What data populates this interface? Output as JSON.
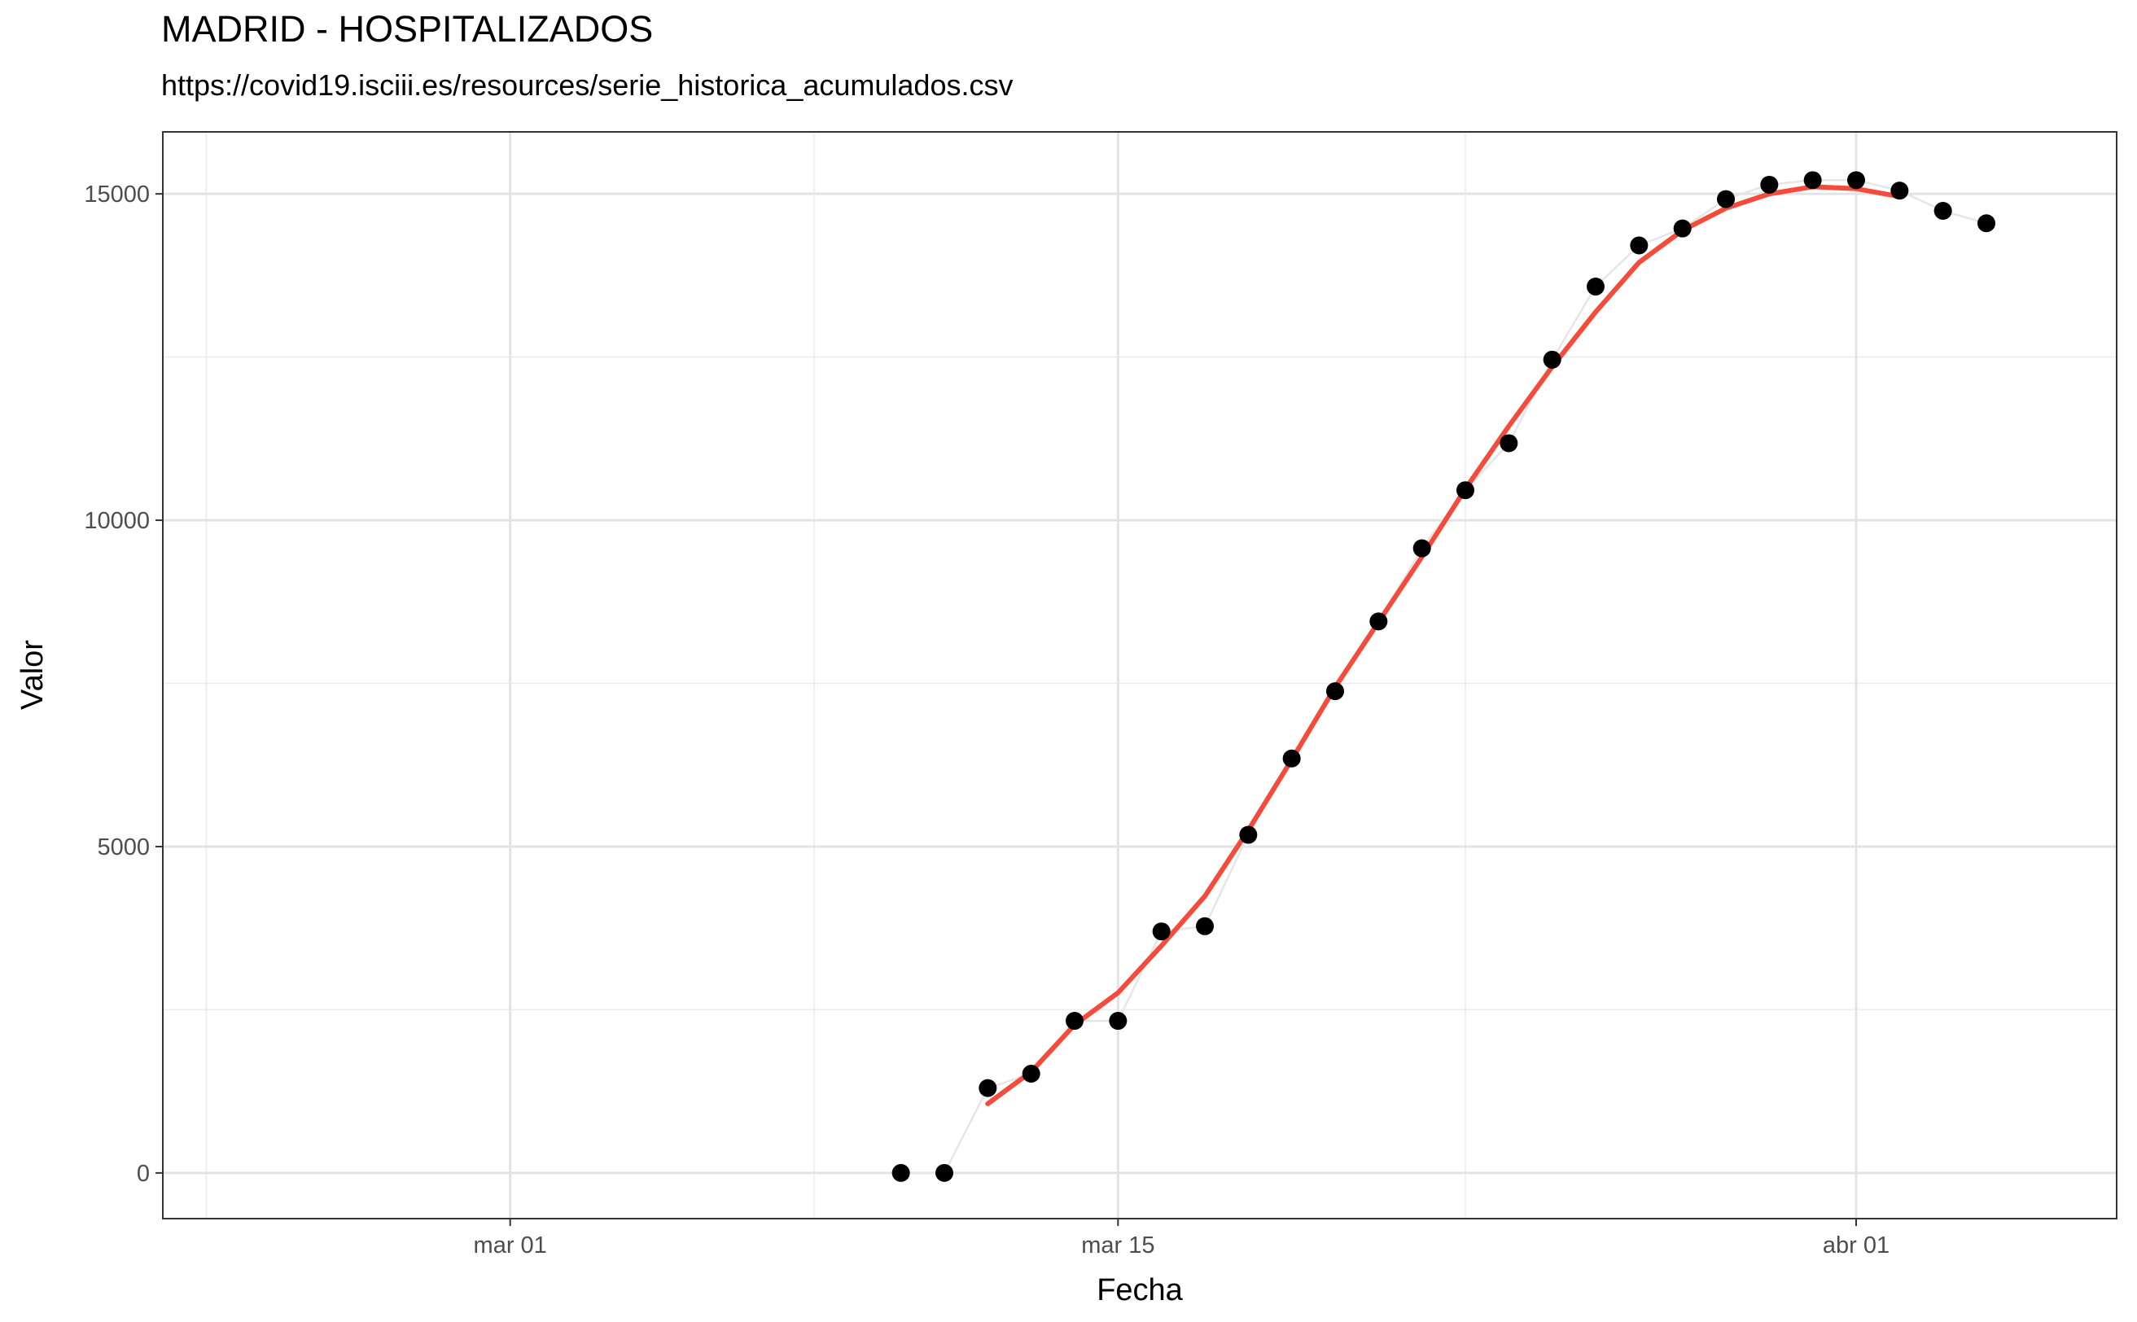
{
  "chart_data": {
    "type": "line",
    "title": "MADRID - HOSPITALIZADOS",
    "subtitle": "https://covid19.isciii.es/resources/serie_historica_acumulados.csv",
    "xlabel": "Fecha",
    "ylabel": "Valor",
    "x_is_date": true,
    "xlim": [
      "2020-02-22",
      "2020-04-07"
    ],
    "ylim": [
      -700,
      15950
    ],
    "x_ticks": [
      {
        "date": "2020-03-01",
        "label": "mar 01"
      },
      {
        "date": "2020-03-15",
        "label": "mar 15"
      },
      {
        "date": "2020-04-01",
        "label": "abr 01"
      }
    ],
    "x_minor_ticks": [
      "2020-02-23",
      "2020-03-08",
      "2020-03-23"
    ],
    "y_ticks": [
      0,
      5000,
      10000,
      15000
    ],
    "y_minor_ticks": [
      2500,
      7500,
      12500
    ],
    "grid": true,
    "series": [
      {
        "name": "",
        "style": "points-with-thin-line",
        "point_color": "#000000",
        "line_color": "#e6e6e6",
        "x": [
          "2020-03-10",
          "2020-03-11",
          "2020-03-12",
          "2020-03-13",
          "2020-03-14",
          "2020-03-15",
          "2020-03-16",
          "2020-03-17",
          "2020-03-18",
          "2020-03-19",
          "2020-03-20",
          "2020-03-21",
          "2020-03-22",
          "2020-03-23",
          "2020-03-24",
          "2020-03-25",
          "2020-03-26",
          "2020-03-27",
          "2020-03-28",
          "2020-03-29",
          "2020-03-30",
          "2020-03-31",
          "2020-04-01",
          "2020-04-02",
          "2020-04-03",
          "2020-04-04"
        ],
        "values": [
          0,
          0,
          1300,
          1520,
          2330,
          2330,
          3700,
          3780,
          5180,
          6350,
          7380,
          8450,
          9570,
          10460,
          11180,
          12460,
          13580,
          14210,
          14470,
          14920,
          15140,
          15210,
          15210,
          15050,
          14740,
          14550
        ]
      },
      {
        "name": "",
        "style": "smooth-line",
        "line_color": "#f44b3b",
        "x": [
          "2020-03-12",
          "2020-03-13",
          "2020-03-14",
          "2020-03-15",
          "2020-03-16",
          "2020-03-17",
          "2020-03-18",
          "2020-03-19",
          "2020-03-20",
          "2020-03-21",
          "2020-03-22",
          "2020-03-23",
          "2020-03-24",
          "2020-03-25",
          "2020-03-26",
          "2020-03-27",
          "2020-03-28",
          "2020-03-29",
          "2020-03-30",
          "2020-03-31",
          "2020-04-01",
          "2020-04-02"
        ],
        "values": [
          1060,
          1550,
          2270,
          2760,
          3480,
          4240,
          5250,
          6330,
          7440,
          8440,
          9440,
          10480,
          11440,
          12350,
          13190,
          13950,
          14440,
          14780,
          15000,
          15110,
          15080,
          14960
        ]
      }
    ]
  }
}
